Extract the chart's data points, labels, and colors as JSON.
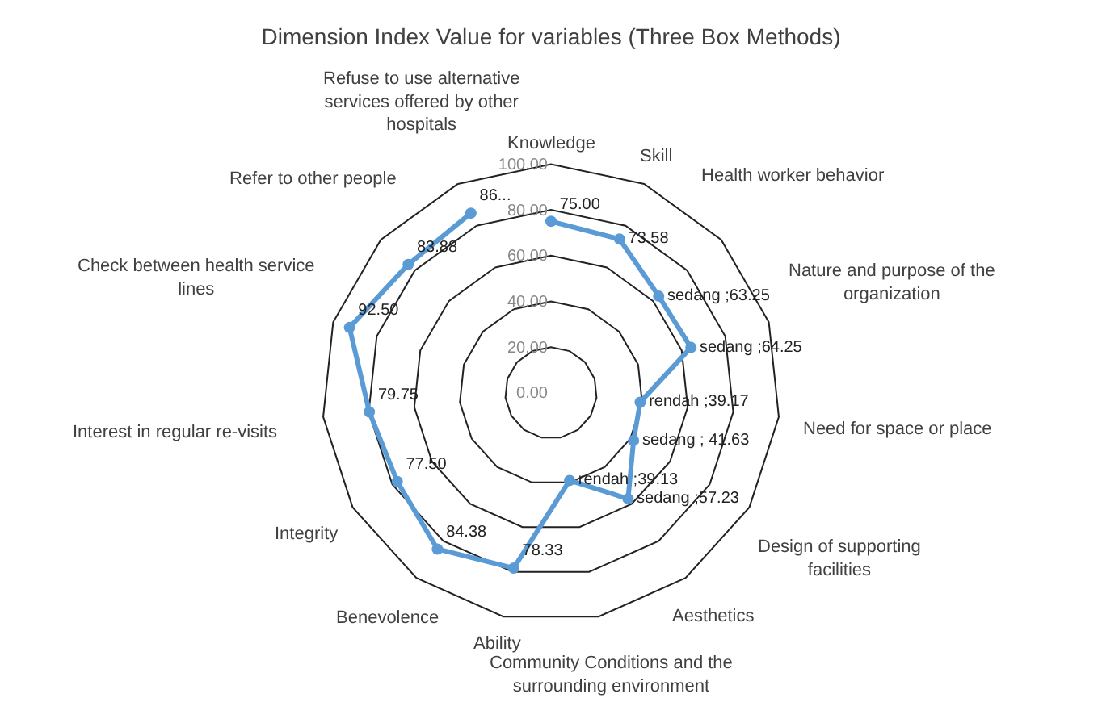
{
  "chart_data": {
    "type": "radar",
    "title": "Dimension Index Value for variables (Three Box Methods)",
    "categories": [
      "Knowledge",
      "Skill",
      "Health worker behavior",
      "Nature and purpose of the organization",
      "Need for space or place",
      "Design of supporting facilities",
      "Aesthetics",
      "Community Conditions and the surrounding environment",
      "Ability",
      "Benevolence",
      "Integrity",
      "Interest in regular re-visits",
      "Check between health service lines",
      "Refer to other people",
      "Refuse to use alternative services offered by other hospitals"
    ],
    "series": [
      {
        "color": "#5b9bd5",
        "values": [
          75.0,
          73.58,
          63.25,
          64.25,
          39.17,
          41.63,
          57.23,
          39.13,
          78.33,
          84.38,
          77.5,
          79.75,
          92.5,
          83.88,
          86
        ],
        "value_labels": [
          "75.00",
          "73.58",
          "sedang ;63.25",
          "sedang ;64.25",
          "rendah ;39.17",
          "sedang ; 41.63",
          "sedang ;57.23",
          "rendah ;39.13",
          "78.33",
          "84.38",
          "77.50",
          "79.75",
          "92.50",
          "83.88",
          "86..."
        ]
      }
    ],
    "ylim": [
      0,
      100
    ],
    "yticks": [
      {
        "value": 0,
        "label": "0.00"
      },
      {
        "value": 20,
        "label": "20.00"
      },
      {
        "value": 40,
        "label": "40.00"
      },
      {
        "value": 60,
        "label": "60.00"
      },
      {
        "value": 80,
        "label": "80.00"
      },
      {
        "value": 100,
        "label": "100.00"
      }
    ],
    "grid": true,
    "marker": "circle"
  }
}
